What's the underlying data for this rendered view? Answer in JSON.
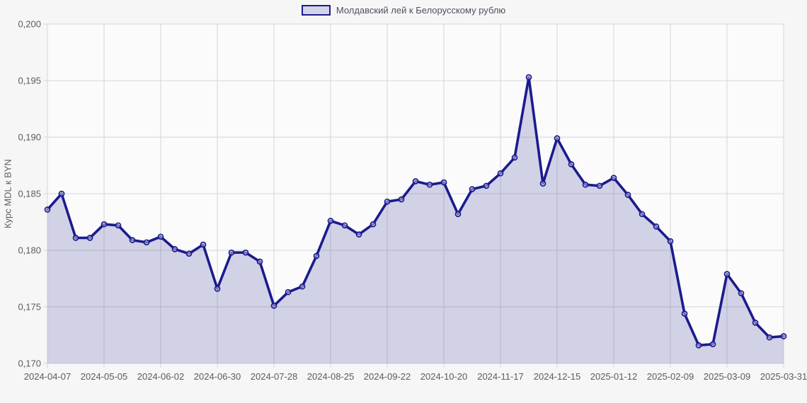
{
  "chart_data": {
    "type": "area",
    "legend_label": "Молдавский лей к Белорусскому рублю",
    "ylabel": "Курс MDL к BYN",
    "ylim": [
      0.17,
      0.2
    ],
    "grid": true,
    "legend_position": "top-center",
    "y_tick_values": [
      0.2,
      0.195,
      0.19,
      0.185,
      0.18,
      0.175,
      0.17
    ],
    "y_tick_labels": [
      "0,200",
      "0,195",
      "0,190",
      "0,185",
      "0,180",
      "0,175",
      "0,170"
    ],
    "x_tick_every": 4,
    "x_tick_labels": [
      "2024-04-07",
      "2024-05-05",
      "2024-06-02",
      "2024-06-30",
      "2024-07-28",
      "2024-08-25",
      "2024-09-22",
      "2024-10-20",
      "2024-11-17",
      "2024-12-15",
      "2025-01-12",
      "2025-02-09",
      "2025-03-09",
      "2025-03-31"
    ],
    "dates": [
      "2024-04-07",
      "2024-04-14",
      "2024-04-21",
      "2024-04-28",
      "2024-05-05",
      "2024-05-12",
      "2024-05-19",
      "2024-05-26",
      "2024-06-02",
      "2024-06-09",
      "2024-06-16",
      "2024-06-23",
      "2024-06-30",
      "2024-07-07",
      "2024-07-14",
      "2024-07-21",
      "2024-07-28",
      "2024-08-04",
      "2024-08-11",
      "2024-08-18",
      "2024-08-25",
      "2024-09-01",
      "2024-09-08",
      "2024-09-15",
      "2024-09-22",
      "2024-09-29",
      "2024-10-06",
      "2024-10-13",
      "2024-10-20",
      "2024-10-27",
      "2024-11-03",
      "2024-11-10",
      "2024-11-17",
      "2024-11-24",
      "2024-12-01",
      "2024-12-08",
      "2024-12-15",
      "2024-12-22",
      "2024-12-29",
      "2025-01-05",
      "2025-01-12",
      "2025-01-19",
      "2025-01-26",
      "2025-02-02",
      "2025-02-09",
      "2025-02-16",
      "2025-02-23",
      "2025-03-02",
      "2025-03-09",
      "2025-03-16",
      "2025-03-23",
      "2025-03-30",
      "2025-03-31"
    ],
    "values": [
      0.1836,
      0.185,
      0.1811,
      0.1811,
      0.1823,
      0.1822,
      0.1809,
      0.1807,
      0.1812,
      0.1801,
      0.1797,
      0.1805,
      0.1766,
      0.1798,
      0.1798,
      0.179,
      0.1751,
      0.1763,
      0.1768,
      0.1795,
      0.1826,
      0.1822,
      0.1814,
      0.1823,
      0.1843,
      0.1845,
      0.1861,
      0.1858,
      0.186,
      0.1832,
      0.1854,
      0.1857,
      0.1868,
      0.1882,
      0.1953,
      0.1859,
      0.1899,
      0.1876,
      0.1858,
      0.1857,
      0.1864,
      0.1849,
      0.1832,
      0.1821,
      0.1808,
      0.1744,
      0.1716,
      0.1717,
      0.1779,
      0.1762,
      0.1736,
      0.1723,
      0.1724
    ],
    "colors": {
      "line": "#1b1b8e",
      "area_fill": "rgba(27,27,142,0.18)",
      "marker_fill": "rgba(255,255,255,0.40)",
      "grid": "#d6d6d6",
      "plot_bg": "#fbfbfb",
      "page_bg": "#f6f6f7",
      "axis_text": "#5c5c5c",
      "legend_text": "#50505e",
      "legend_swatch_fill": "#d4d4e8"
    }
  }
}
